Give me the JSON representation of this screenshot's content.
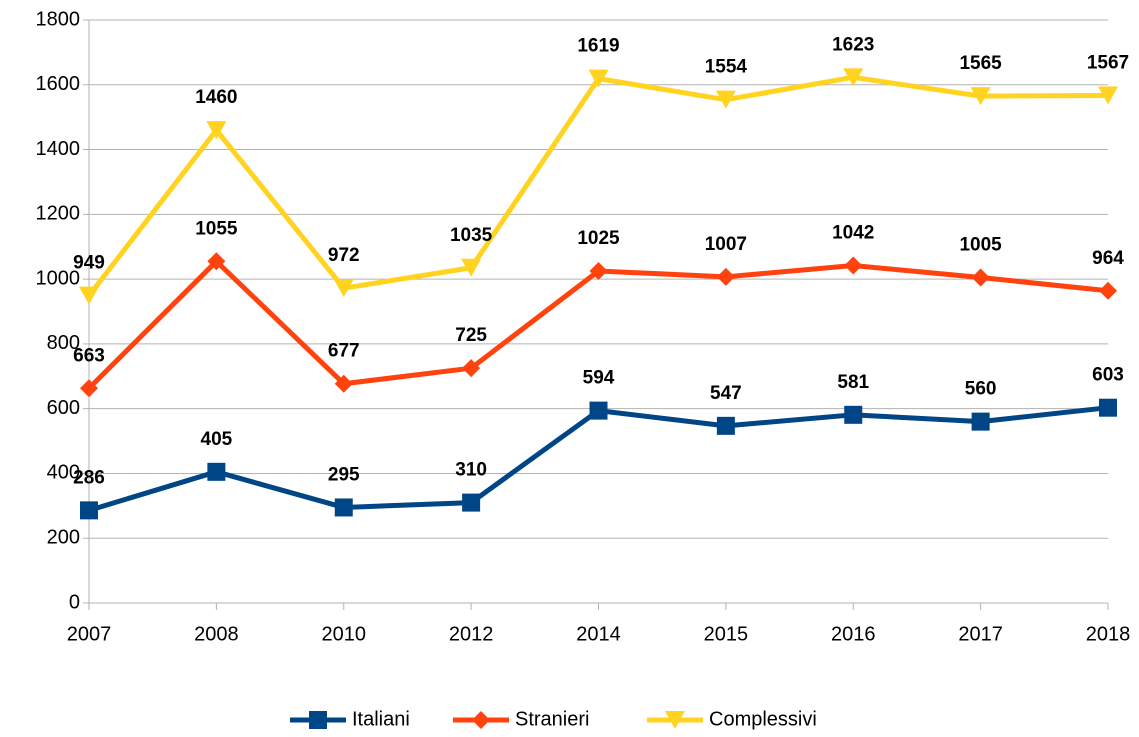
{
  "chart_data": {
    "type": "line",
    "categories": [
      "2007",
      "2008",
      "2010",
      "2012",
      "2014",
      "2015",
      "2016",
      "2017",
      "2018"
    ],
    "series": [
      {
        "name": "Italiani",
        "color": "#004586",
        "marker": "square",
        "values": [
          286,
          405,
          295,
          310,
          594,
          547,
          581,
          560,
          603
        ]
      },
      {
        "name": "Stranieri",
        "color": "#ff420e",
        "marker": "diamond",
        "values": [
          663,
          1055,
          677,
          725,
          1025,
          1007,
          1042,
          1005,
          964
        ]
      },
      {
        "name": "Complessivi",
        "color": "#ffd320",
        "marker": "triangle-down",
        "values": [
          949,
          1460,
          972,
          1035,
          1619,
          1554,
          1623,
          1565,
          1567
        ]
      }
    ],
    "ylim": [
      0,
      1800
    ],
    "yticks": [
      0,
      200,
      400,
      600,
      800,
      1000,
      1200,
      1400,
      1600,
      1800
    ],
    "grid": true,
    "legend": "bottom"
  }
}
